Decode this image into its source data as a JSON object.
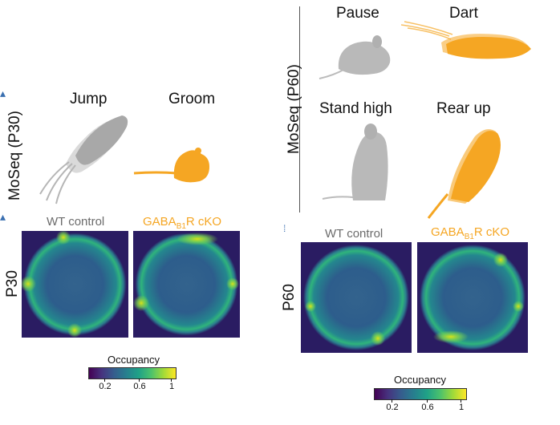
{
  "left_top": {
    "ylabel": "MoSeq (P30)",
    "behaviors": [
      {
        "label": "Jump",
        "color": "gray"
      },
      {
        "label": "Groom",
        "color": "orange"
      }
    ]
  },
  "right_top": {
    "ylabel": "MoSeq (P60)",
    "behaviors": [
      {
        "label": "Pause",
        "color": "gray"
      },
      {
        "label": "Dart",
        "color": "orange"
      },
      {
        "label": "Stand high",
        "color": "gray"
      },
      {
        "label": "Rear up",
        "color": "orange"
      }
    ]
  },
  "left_bottom": {
    "row_label": "P30",
    "wt_label": "WT control",
    "ko_prefix": "GABA",
    "ko_sub": "B1",
    "ko_suffix": "R cKO"
  },
  "right_bottom": {
    "row_label": "P60",
    "wt_label": "WT control",
    "ko_prefix": "GABA",
    "ko_sub": "B1",
    "ko_suffix": "R cKO"
  },
  "colorbar_left": {
    "title": "Occupancy",
    "ticks": [
      "0.2",
      "0.6",
      "1"
    ]
  },
  "colorbar_right": {
    "title": "Occupancy",
    "ticks": [
      "0.2",
      "0.6",
      "1"
    ]
  },
  "colors": {
    "gray_mouse": "#b9b9b9",
    "orange_mouse": "#f5a623",
    "arena_dark": "#2a1c62",
    "arena_mid": "#2f6f8d",
    "arena_bright": "#3fbf72"
  }
}
